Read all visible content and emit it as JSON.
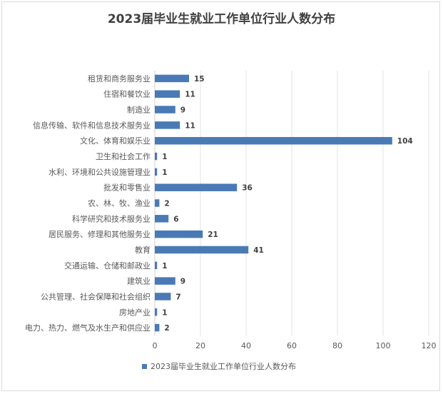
{
  "chart_data": {
    "type": "bar",
    "orientation": "horizontal",
    "title": "2023届毕业生就业工作单位行业人数分布",
    "categories": [
      "租赁和商务服务业",
      "住宿和餐饮业",
      "制造业",
      "信息传输、软件和信息技术服务业",
      "文化、体育和娱乐业",
      "卫生和社会工作",
      "水利、环境和公共设施管理业",
      "批发和零售业",
      "农、林、牧、渔业",
      "科学研究和技术服务业",
      "居民服务、修理和其他服务业",
      "教育",
      "交通运输、仓储和邮政业",
      "建筑业",
      "公共管理、社会保障和社会组织",
      "房地产业",
      "电力、热力、燃气及水生产和供应业"
    ],
    "series": [
      {
        "name": "2023届毕业生就业工作单位行业人数分布",
        "values": [
          15,
          11,
          9,
          11,
          104,
          1,
          1,
          36,
          2,
          6,
          21,
          41,
          1,
          9,
          7,
          1,
          2
        ]
      }
    ],
    "xlim": [
      0,
      120
    ],
    "xticks": [
      "0",
      "20",
      "40",
      "60",
      "80",
      "100",
      "120"
    ],
    "grid": true,
    "legend_position": "bottom",
    "bar_color": "#4a7ab5",
    "data_labels": true
  }
}
